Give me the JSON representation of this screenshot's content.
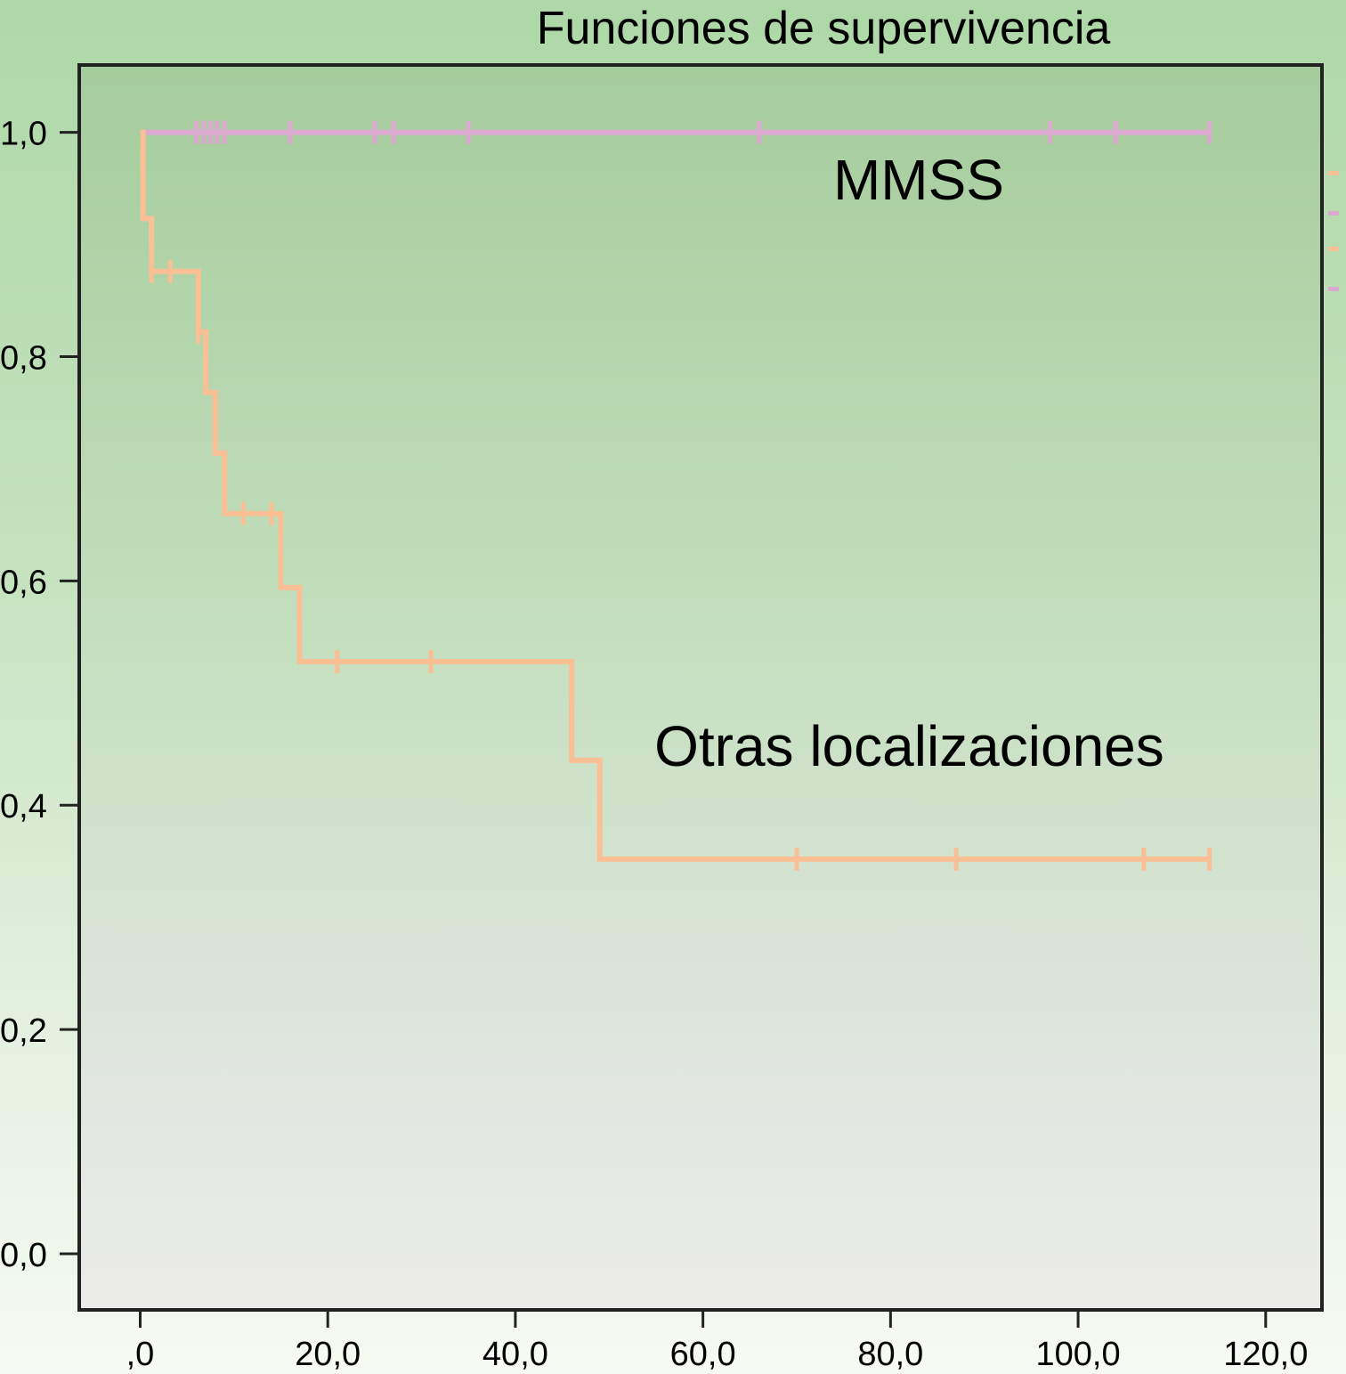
{
  "chart_data": {
    "type": "line",
    "title": "Funciones de supervivencia",
    "xlabel": "",
    "ylabel": "",
    "xlim": [
      -6.5,
      126
    ],
    "ylim": [
      -0.05,
      1.06
    ],
    "x_ticks": [
      0,
      20,
      40,
      60,
      80,
      100,
      120
    ],
    "x_tick_labels": [
      ",0",
      "20,0",
      "40,0",
      "60,0",
      "80,0",
      "100,0",
      "120,0"
    ],
    "y_ticks": [
      0,
      0.2,
      0.4,
      0.6,
      0.8,
      1.0
    ],
    "y_tick_labels": [
      "0,0",
      "0,2",
      "0,4",
      "0,6",
      "0,8",
      "1,0"
    ],
    "grid": false,
    "series": [
      {
        "name": "MMSS",
        "color": "#dba9cf",
        "steps": [
          [
            0,
            1.0
          ],
          [
            114,
            1.0
          ]
        ],
        "censored": [
          [
            6,
            1.0
          ],
          [
            6.8,
            1.0
          ],
          [
            7.5,
            1.0
          ],
          [
            8.2,
            1.0
          ],
          [
            9,
            1.0
          ],
          [
            16,
            1.0
          ],
          [
            25,
            1.0
          ],
          [
            27,
            1.0
          ],
          [
            35,
            1.0
          ],
          [
            66,
            1.0
          ],
          [
            97,
            1.0
          ],
          [
            104,
            1.0
          ],
          [
            114,
            1.0
          ]
        ]
      },
      {
        "name": "Otras localizaciones",
        "color": "#fbbf95",
        "steps": [
          [
            0,
            1.0
          ],
          [
            0.3,
            0.923
          ],
          [
            1.2,
            0.876
          ],
          [
            6.2,
            0.822
          ],
          [
            7,
            0.768
          ],
          [
            8,
            0.714
          ],
          [
            9,
            0.66
          ],
          [
            15,
            0.594
          ],
          [
            17,
            0.528
          ],
          [
            46,
            0.44
          ],
          [
            49,
            0.352
          ],
          [
            114,
            0.352
          ]
        ],
        "censored": [
          [
            1.2,
            0.876
          ],
          [
            3.2,
            0.876
          ],
          [
            6.2,
            0.822
          ],
          [
            11,
            0.66
          ],
          [
            14,
            0.66
          ],
          [
            21,
            0.528
          ],
          [
            31,
            0.528
          ],
          [
            70,
            0.352
          ],
          [
            87,
            0.352
          ],
          [
            107,
            0.352
          ],
          [
            114,
            0.352
          ]
        ]
      }
    ],
    "annotations": [
      {
        "text": "MMSS",
        "x": 83,
        "y": 0.94
      },
      {
        "text": "Otras localizaciones",
        "x": 82,
        "y": 0.435
      }
    ]
  }
}
